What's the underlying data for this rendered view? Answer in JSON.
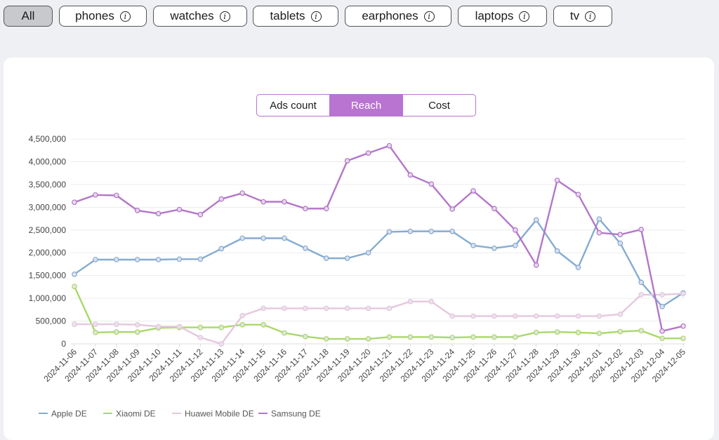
{
  "categories": [
    {
      "label": "All",
      "active": true,
      "info": false
    },
    {
      "label": "phones",
      "active": false,
      "info": true
    },
    {
      "label": "watches",
      "active": false,
      "info": true
    },
    {
      "label": "tablets",
      "active": false,
      "info": true
    },
    {
      "label": "earphones",
      "active": false,
      "info": true
    },
    {
      "label": "laptops",
      "active": false,
      "info": true
    },
    {
      "label": "tv",
      "active": false,
      "info": true
    }
  ],
  "info_glyph": "i",
  "metric_toggle": [
    {
      "label": "Ads count",
      "active": false
    },
    {
      "label": "Reach",
      "active": true
    },
    {
      "label": "Cost",
      "active": false
    }
  ],
  "chart_data": {
    "type": "line",
    "title": "",
    "xlabel": "",
    "ylabel": "",
    "ylim": [
      0,
      4500000
    ],
    "yticks": [
      0,
      500000,
      1000000,
      1500000,
      2000000,
      2500000,
      3000000,
      3500000,
      4000000,
      4500000
    ],
    "grid": true,
    "legend_position": "bottom-left",
    "x": [
      "2024-11-06",
      "2024-11-07",
      "2024-11-08",
      "2024-11-09",
      "2024-11-10",
      "2024-11-11",
      "2024-11-12",
      "2024-11-13",
      "2024-11-14",
      "2024-11-15",
      "2024-11-16",
      "2024-11-17",
      "2024-11-18",
      "2024-11-19",
      "2024-11-20",
      "2024-11-21",
      "2024-11-22",
      "2024-11-23",
      "2024-11-24",
      "2024-11-25",
      "2024-11-26",
      "2024-11-27",
      "2024-11-28",
      "2024-11-29",
      "2024-11-30",
      "2024-12-01",
      "2024-12-02",
      "2024-12-03",
      "2024-12-04",
      "2024-12-05"
    ],
    "series": [
      {
        "name": "Apple DE",
        "color": "#84acd2",
        "values": [
          1530000,
          1850000,
          1850000,
          1850000,
          1850000,
          1860000,
          1860000,
          2090000,
          2320000,
          2320000,
          2320000,
          2100000,
          1880000,
          1880000,
          2000000,
          2460000,
          2470000,
          2470000,
          2470000,
          2160000,
          2100000,
          2160000,
          2720000,
          2040000,
          1680000,
          2740000,
          2210000,
          1350000,
          820000,
          1120000
        ]
      },
      {
        "name": "Xiaomi DE",
        "color": "#a9d86a",
        "values": [
          1260000,
          250000,
          260000,
          260000,
          350000,
          360000,
          360000,
          360000,
          420000,
          420000,
          240000,
          160000,
          110000,
          110000,
          110000,
          150000,
          150000,
          150000,
          140000,
          150000,
          150000,
          150000,
          250000,
          260000,
          250000,
          230000,
          270000,
          290000,
          120000,
          120000
        ]
      },
      {
        "name": "Huawei Mobile DE",
        "color": "#e5c7de",
        "values": [
          430000,
          430000,
          430000,
          420000,
          380000,
          380000,
          140000,
          0,
          620000,
          780000,
          780000,
          780000,
          780000,
          780000,
          780000,
          780000,
          930000,
          930000,
          610000,
          610000,
          610000,
          610000,
          610000,
          610000,
          610000,
          610000,
          650000,
          1080000,
          1080000,
          1100000
        ]
      },
      {
        "name": "Samsung DE",
        "color": "#b476c9",
        "values": [
          3110000,
          3270000,
          3260000,
          2930000,
          2860000,
          2950000,
          2840000,
          3180000,
          3310000,
          3120000,
          3120000,
          2970000,
          2970000,
          4020000,
          4190000,
          4350000,
          3710000,
          3510000,
          2960000,
          3360000,
          2970000,
          2500000,
          1730000,
          3590000,
          3280000,
          2440000,
          2400000,
          2510000,
          280000,
          390000
        ]
      }
    ]
  }
}
